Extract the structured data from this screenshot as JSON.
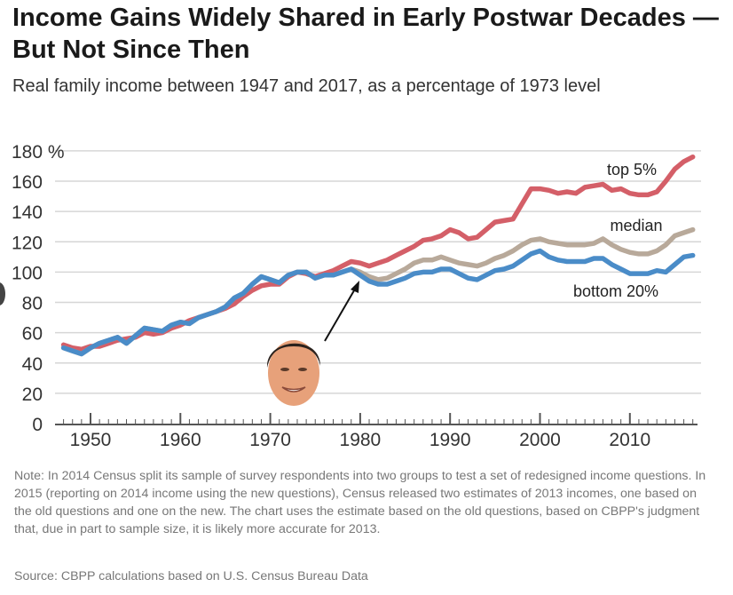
{
  "title": "Income Gains Widely Shared in Early Postwar Decades — But Not Since Then",
  "subtitle": "Real family income between 1947 and 2017, as a percentage of 1973 level",
  "note": "Note: In 2014 Census split its sample of survey respondents into two groups to test a set of redesigned income questions.  In 2015 (reporting on 2014 income using the new questions), Census released two estimates of 2013 incomes, one based on the old questions and one on the new.  The chart uses the estimate based on the old questions, based on CBPP's judgment that, due in part to sample size, it is likely more accurate for 2013.",
  "source": "Source: CBPP calculations based on U.S. Census Bureau Data",
  "chart_data": {
    "type": "line",
    "title": "Income Gains Widely Shared in Early Postwar Decades — But Not Since Then",
    "xlabel": "",
    "ylabel": "",
    "xlim": [
      1947,
      2017
    ],
    "ylim": [
      0,
      180
    ],
    "yticks": [
      "0",
      "20",
      "40",
      "60",
      "80",
      "100",
      "120",
      "140",
      "160",
      "180 %"
    ],
    "xticks": [
      "1950",
      "1960",
      "1970",
      "1980",
      "1990",
      "2000",
      "2010"
    ],
    "grid": true,
    "x_start": 1947,
    "series": [
      {
        "name": "top 5%",
        "color": "#d45f68",
        "values": [
          52,
          50,
          49,
          51,
          51,
          53,
          55,
          56,
          57,
          60,
          59,
          60,
          63,
          65,
          68,
          70,
          72,
          74,
          76,
          79,
          84,
          88,
          91,
          92,
          92,
          97,
          100,
          99,
          97,
          99,
          101,
          104,
          107,
          106,
          104,
          106,
          108,
          111,
          114,
          117,
          121,
          122,
          124,
          128,
          126,
          122,
          123,
          128,
          133,
          134,
          135,
          145,
          155,
          155,
          154,
          152,
          153,
          152,
          156,
          157,
          158,
          154,
          155,
          152,
          151,
          151,
          153,
          160,
          168,
          173,
          176
        ]
      },
      {
        "name": "median",
        "color": "#b8a99a",
        "values": [
          50,
          48,
          46,
          50,
          53,
          55,
          57,
          53,
          58,
          63,
          62,
          61,
          65,
          67,
          66,
          70,
          72,
          74,
          77,
          83,
          86,
          92,
          97,
          95,
          93,
          98,
          100,
          100,
          96,
          98,
          98,
          100,
          102,
          100,
          97,
          95,
          96,
          99,
          102,
          106,
          108,
          108,
          110,
          108,
          106,
          105,
          104,
          106,
          109,
          111,
          114,
          118,
          121,
          122,
          120,
          119,
          118,
          118,
          118,
          119,
          122,
          118,
          115,
          113,
          112,
          112,
          114,
          118,
          124,
          126,
          128
        ]
      },
      {
        "name": "bottom 20%",
        "color": "#4a8cc8",
        "values": [
          50,
          48,
          46,
          50,
          53,
          55,
          57,
          53,
          58,
          63,
          62,
          61,
          65,
          67,
          66,
          70,
          72,
          74,
          77,
          83,
          86,
          92,
          97,
          95,
          93,
          98,
          100,
          100,
          96,
          98,
          98,
          100,
          102,
          98,
          94,
          92,
          92,
          94,
          96,
          99,
          100,
          100,
          102,
          102,
          99,
          96,
          95,
          98,
          101,
          102,
          104,
          108,
          112,
          114,
          110,
          108,
          107,
          107,
          107,
          109,
          109,
          105,
          102,
          99,
          99,
          99,
          101,
          100,
          105,
          110,
          111
        ]
      }
    ],
    "annotation": "arrow from portrait to 1980"
  }
}
